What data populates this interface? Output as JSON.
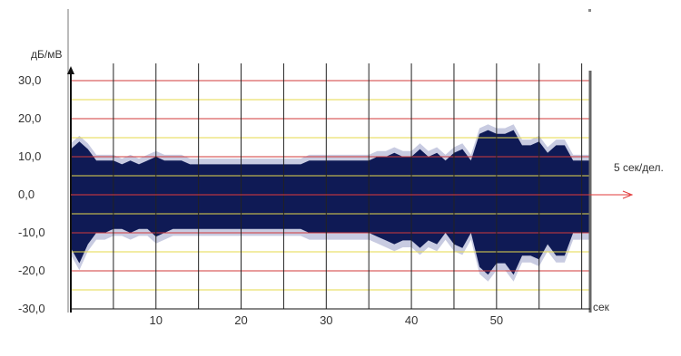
{
  "colors": {
    "signal": "#0f1a55",
    "signal_halo": "#9aa0c8",
    "grid_red": "#d23a3a",
    "grid_yellow": "#e6d84a",
    "grid_vertical": "#222222",
    "axis_arrow": "#e23a3a",
    "background": "#ffffff"
  },
  "chart_data": {
    "type": "area",
    "title": "",
    "ylabel": "дБ/мВ",
    "xlabel": "сек",
    "scale_label": "5 сек/дел.",
    "xlim": [
      0,
      61
    ],
    "ylim": [
      -30,
      30
    ],
    "y_ticks": [
      30,
      20,
      10,
      0,
      -10,
      -20,
      -30
    ],
    "y_tick_labels": [
      "30,0",
      "20,0",
      "10,0",
      "0,0",
      "-10,0",
      "-20,0",
      "-30,0"
    ],
    "x_ticks": [
      10,
      20,
      30,
      40,
      50
    ],
    "x_tick_labels": [
      "10",
      "20",
      "30",
      "40",
      "50"
    ],
    "x_gridlines_every": 5,
    "y_gridlines_red": [
      30,
      20,
      10,
      0,
      -10,
      -20,
      -30
    ],
    "y_gridlines_yellow": [
      25,
      15,
      5,
      -5,
      -15,
      -25
    ],
    "grid": true,
    "series": [
      {
        "x": [
          0,
          1,
          2,
          3,
          4,
          5,
          6,
          7,
          8,
          9,
          10,
          11,
          12,
          13,
          14,
          15,
          16,
          17,
          18,
          19,
          20,
          21,
          22,
          23,
          24,
          25,
          26,
          27,
          28,
          29,
          30,
          31,
          32,
          33,
          34,
          35,
          36,
          37,
          38,
          39,
          40,
          41,
          42,
          43,
          44,
          45,
          46,
          47,
          48,
          49,
          50,
          51,
          52,
          53,
          54,
          55,
          56,
          57,
          58,
          59,
          60,
          61
        ],
        "upper": [
          12,
          14,
          12,
          9,
          9,
          9,
          8,
          9,
          8,
          9,
          10,
          9,
          9,
          9,
          8,
          8,
          8,
          8,
          8,
          8,
          8,
          8,
          8,
          8,
          8,
          8,
          8,
          8,
          9,
          9,
          9,
          9,
          9,
          9,
          9,
          9,
          10,
          10,
          11,
          10,
          10,
          12,
          10,
          11,
          9,
          11,
          12,
          9,
          16,
          17,
          16,
          16,
          17,
          13,
          13,
          14,
          11,
          13,
          13,
          9,
          9,
          9
        ],
        "lower": [
          -14,
          -18,
          -13,
          -10,
          -10,
          -9,
          -9,
          -10,
          -9,
          -9,
          -11,
          -10,
          -9,
          -9,
          -9,
          -9,
          -9,
          -9,
          -9,
          -9,
          -9,
          -9,
          -9,
          -9,
          -9,
          -9,
          -9,
          -9,
          -10,
          -10,
          -10,
          -10,
          -10,
          -10,
          -10,
          -10,
          -11,
          -12,
          -13,
          -12,
          -12,
          -14,
          -12,
          -13,
          -10,
          -13,
          -14,
          -10,
          -19,
          -21,
          -18,
          -18,
          -21,
          -16,
          -16,
          -17,
          -13,
          -16,
          -16,
          -10,
          -10,
          -10
        ]
      }
    ]
  }
}
